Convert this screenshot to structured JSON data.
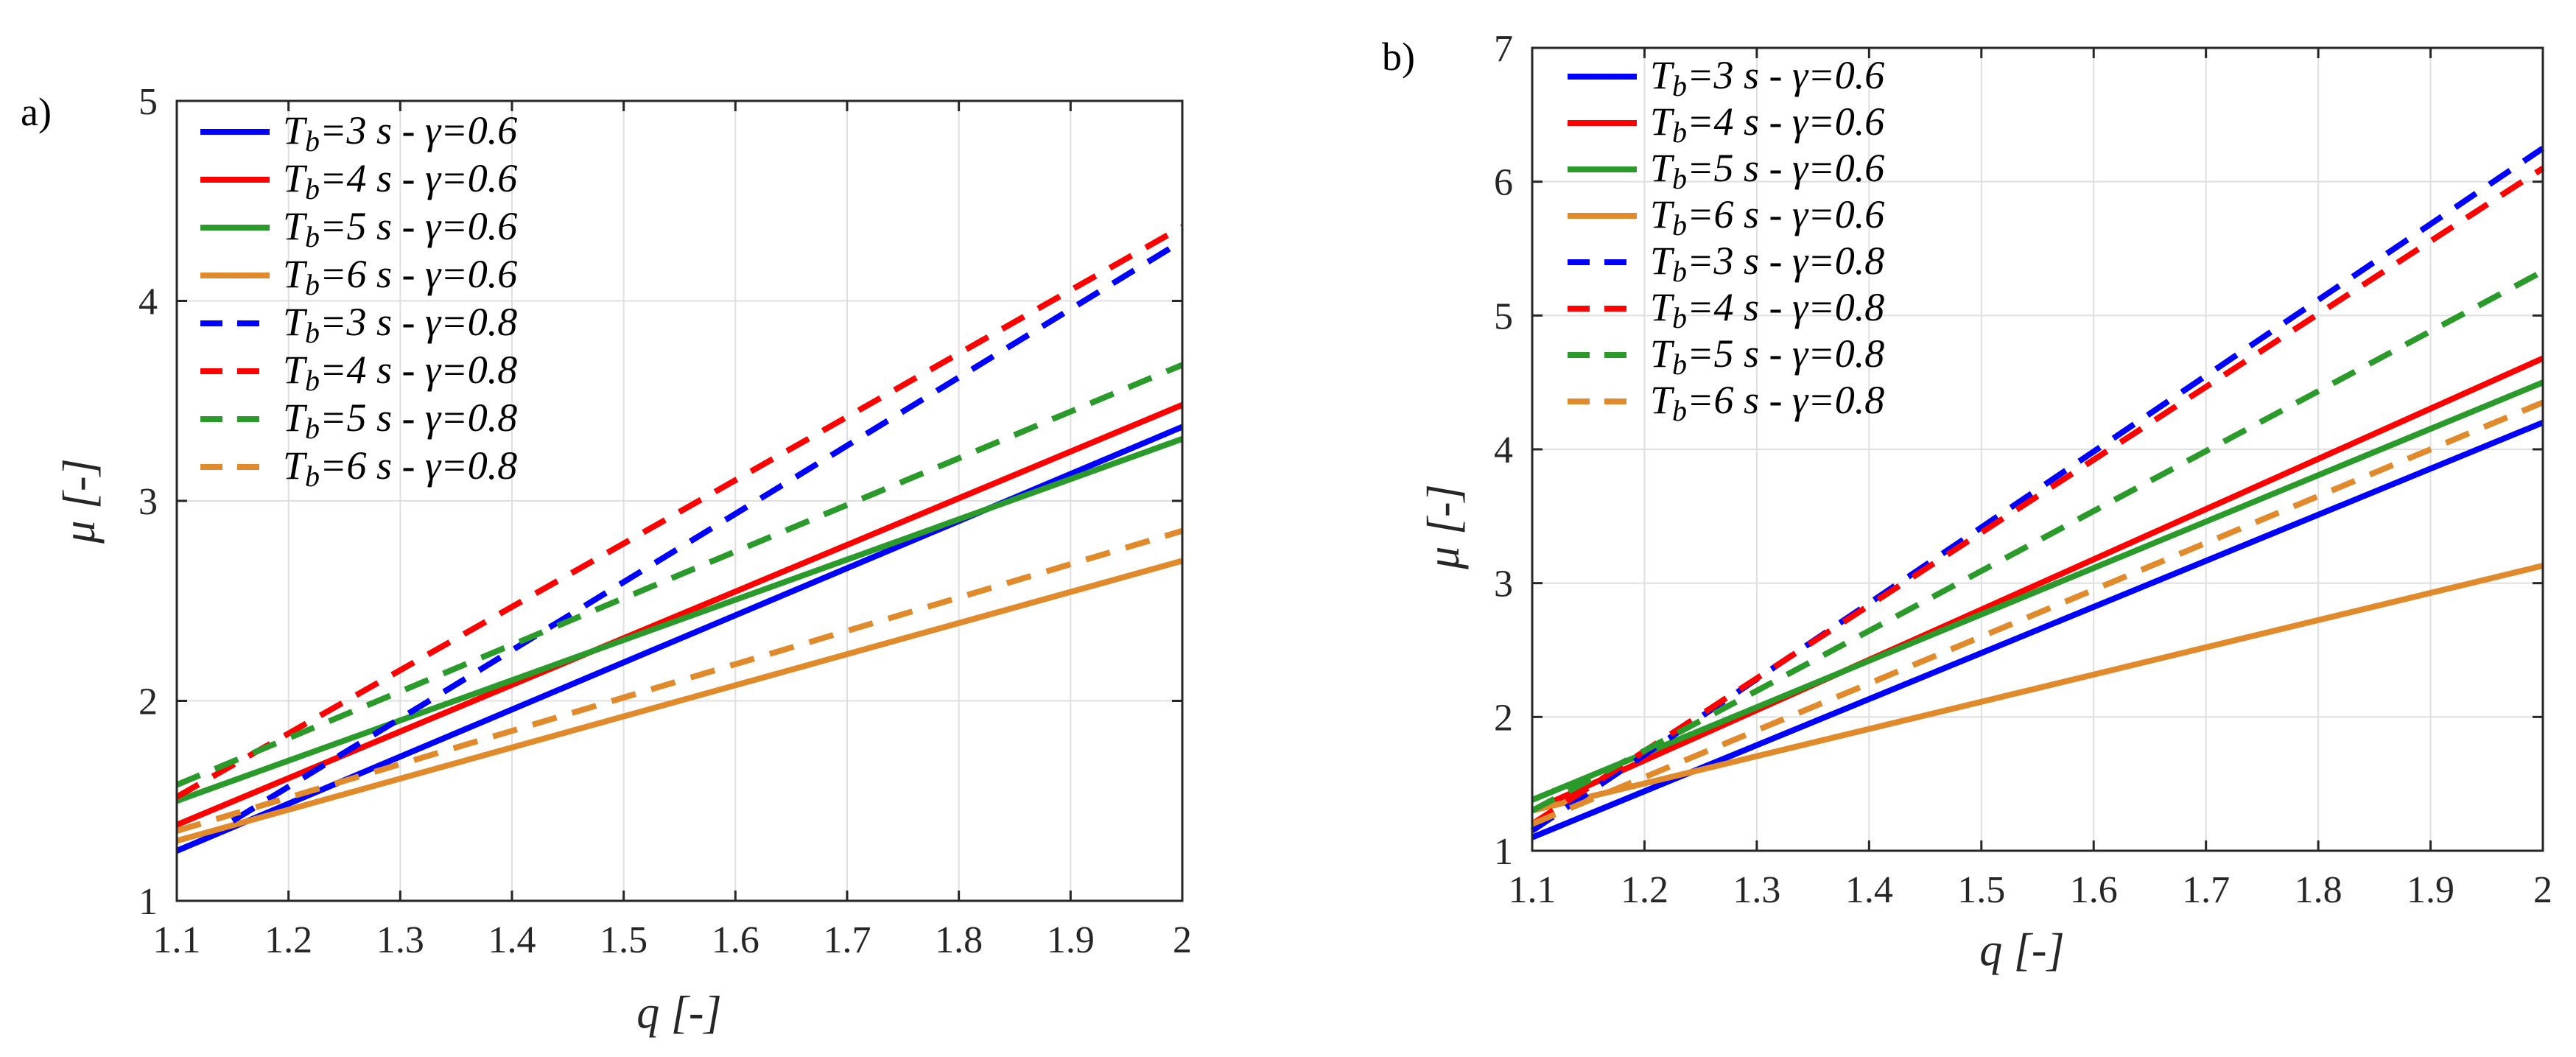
{
  "colors": {
    "blue": "#0000ff",
    "red": "#ff0000",
    "green": "#2a9a2a",
    "orange": "#e08a2c"
  },
  "chart_data": [
    {
      "type": "line",
      "panel_label": "a)",
      "xlabel_var": "q",
      "xlabel_unit": " [-]",
      "ylabel_var": "μ",
      "ylabel_unit": " [-]",
      "xlim": [
        1.1,
        2.0
      ],
      "ylim": [
        1,
        5
      ],
      "xticks": [
        "1.1",
        "1.2",
        "1.3",
        "1.4",
        "1.5",
        "1.6",
        "1.7",
        "1.8",
        "1.9",
        "2"
      ],
      "yticks": [
        "1",
        "2",
        "3",
        "4",
        "5"
      ],
      "grid": true,
      "legend_position": "top-left",
      "series": [
        {
          "name": "T_b=3 s - γ=0.6",
          "tb": "3",
          "gamma": "0.6",
          "color": "blue",
          "style": "solid",
          "x": [
            1.1,
            2.0
          ],
          "y": [
            1.25,
            3.37
          ]
        },
        {
          "name": "T_b=4 s - γ=0.6",
          "tb": "4",
          "gamma": "0.6",
          "color": "red",
          "style": "solid",
          "x": [
            1.1,
            2.0
          ],
          "y": [
            1.38,
            3.48
          ]
        },
        {
          "name": "T_b=5 s - γ=0.6",
          "tb": "5",
          "gamma": "0.6",
          "color": "green",
          "style": "solid",
          "x": [
            1.1,
            2.0
          ],
          "y": [
            1.5,
            3.31
          ]
        },
        {
          "name": "T_b=6 s - γ=0.6",
          "tb": "6",
          "gamma": "0.6",
          "color": "orange",
          "style": "solid",
          "x": [
            1.1,
            2.0
          ],
          "y": [
            1.3,
            2.7
          ]
        },
        {
          "name": "T_b=3 s - γ=0.8",
          "tb": "3",
          "gamma": "0.8",
          "color": "blue",
          "style": "dashed",
          "x": [
            1.15,
            2.0
          ],
          "y": [
            1.4,
            4.3
          ]
        },
        {
          "name": "T_b=4 s - γ=0.8",
          "tb": "4",
          "gamma": "0.8",
          "color": "red",
          "style": "dashed",
          "x": [
            1.1,
            2.0
          ],
          "y": [
            1.52,
            4.37
          ]
        },
        {
          "name": "T_b=5 s - γ=0.8",
          "tb": "5",
          "gamma": "0.8",
          "color": "green",
          "style": "dashed",
          "x": [
            1.1,
            2.0
          ],
          "y": [
            1.58,
            3.68
          ]
        },
        {
          "name": "T_b=6 s - γ=0.8",
          "tb": "6",
          "gamma": "0.8",
          "color": "orange",
          "style": "dashed",
          "x": [
            1.1,
            2.0
          ],
          "y": [
            1.35,
            2.85
          ]
        }
      ]
    },
    {
      "type": "line",
      "panel_label": "b)",
      "xlabel_var": "q",
      "xlabel_unit": " [-]",
      "ylabel_var": "μ",
      "ylabel_unit": " [-]",
      "xlim": [
        1.1,
        2.0
      ],
      "ylim": [
        1,
        7
      ],
      "xticks": [
        "1.1",
        "1.2",
        "1.3",
        "1.4",
        "1.5",
        "1.6",
        "1.7",
        "1.8",
        "1.9",
        "2"
      ],
      "yticks": [
        "1",
        "2",
        "3",
        "4",
        "5",
        "6",
        "7"
      ],
      "grid": true,
      "legend_position": "top-left",
      "series": [
        {
          "name": "T_b=3 s - γ=0.6",
          "tb": "3",
          "gamma": "0.6",
          "color": "blue",
          "style": "solid",
          "x": [
            1.1,
            2.0
          ],
          "y": [
            1.1,
            4.2
          ]
        },
        {
          "name": "T_b=4 s - γ=0.6",
          "tb": "4",
          "gamma": "0.6",
          "color": "red",
          "style": "solid",
          "x": [
            1.1,
            2.0
          ],
          "y": [
            1.3,
            4.68
          ]
        },
        {
          "name": "T_b=5 s - γ=0.6",
          "tb": "5",
          "gamma": "0.6",
          "color": "green",
          "style": "solid",
          "x": [
            1.1,
            2.0
          ],
          "y": [
            1.38,
            4.5
          ]
        },
        {
          "name": "T_b=6 s - γ=0.6",
          "tb": "6",
          "gamma": "0.6",
          "color": "orange",
          "style": "solid",
          "x": [
            1.1,
            2.0
          ],
          "y": [
            1.3,
            3.13
          ]
        },
        {
          "name": "T_b=3 s - γ=0.8",
          "tb": "3",
          "gamma": "0.8",
          "color": "blue",
          "style": "dashed",
          "x": [
            1.1,
            2.0
          ],
          "y": [
            1.15,
            6.25
          ]
        },
        {
          "name": "T_b=4 s - γ=0.8",
          "tb": "4",
          "gamma": "0.8",
          "color": "red",
          "style": "dashed",
          "x": [
            1.1,
            2.0
          ],
          "y": [
            1.2,
            6.1
          ]
        },
        {
          "name": "T_b=5 s - γ=0.8",
          "tb": "5",
          "gamma": "0.8",
          "color": "green",
          "style": "dashed",
          "x": [
            1.1,
            2.0
          ],
          "y": [
            1.3,
            5.33
          ]
        },
        {
          "name": "T_b=6 s - γ=0.8",
          "tb": "6",
          "gamma": "0.8",
          "color": "orange",
          "style": "dashed",
          "x": [
            1.1,
            2.0
          ],
          "y": [
            1.2,
            4.35
          ]
        }
      ]
    }
  ]
}
